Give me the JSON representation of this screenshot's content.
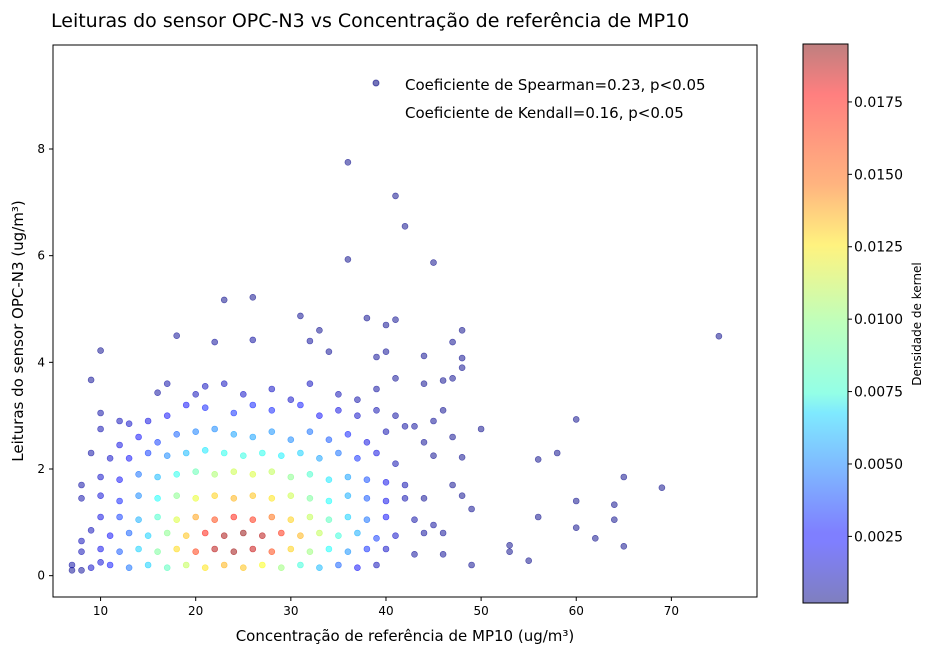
{
  "chart_data": {
    "type": "scatter",
    "title": "Leituras do sensor OPC-N3 vs Concentração de referência de MP10",
    "xlabel": "Concentração de referência de MP10 (ug/m³)",
    "ylabel": "Leituras do sensor OPC-N3 (ug/m³)",
    "xlim": [
      5,
      79
    ],
    "ylim": [
      -0.4,
      9.95
    ],
    "xticks": [
      10,
      20,
      30,
      40,
      50,
      60,
      70
    ],
    "yticks": [
      0,
      2,
      4,
      6,
      8
    ],
    "legend": {
      "placement": "top-right",
      "entries": [
        "Coeficiente de Spearman=0.23, p<0.05",
        "Coeficiente de Kendall=0.16, p<0.05"
      ]
    },
    "colorbar": {
      "label": "Densidade de kernel",
      "colormap": "jet",
      "range": [
        0.0002,
        0.0195
      ],
      "ticks": [
        0.0025,
        0.005,
        0.0075,
        0.01,
        0.0125,
        0.015,
        0.0175
      ],
      "tick_labels": [
        "0.0025",
        "0.0050",
        "0.0075",
        "0.0100",
        "0.0125",
        "0.0150",
        "0.0175"
      ]
    },
    "points": [
      [
        36,
        7.75,
        0.0003
      ],
      [
        41,
        7.12,
        0.0003
      ],
      [
        42,
        6.55,
        0.0003
      ],
      [
        36,
        5.93,
        0.0003
      ],
      [
        45,
        5.87,
        0.0003
      ],
      [
        23,
        5.17,
        0.0003
      ],
      [
        26,
        5.22,
        0.0003
      ],
      [
        31,
        4.87,
        0.0004
      ],
      [
        33,
        4.6,
        0.0004
      ],
      [
        38,
        4.83,
        0.0004
      ],
      [
        40,
        4.7,
        0.0004
      ],
      [
        41,
        4.8,
        0.0004
      ],
      [
        48,
        4.6,
        0.0003
      ],
      [
        75,
        4.49,
        0.0003
      ],
      [
        10,
        4.22,
        0.0004
      ],
      [
        18,
        4.5,
        0.0005
      ],
      [
        22,
        4.38,
        0.0006
      ],
      [
        26,
        4.42,
        0.0007
      ],
      [
        32,
        4.4,
        0.0006
      ],
      [
        34,
        4.2,
        0.0005
      ],
      [
        39,
        4.1,
        0.0005
      ],
      [
        40,
        4.2,
        0.0005
      ],
      [
        44,
        4.12,
        0.0004
      ],
      [
        48,
        4.08,
        0.0004
      ],
      [
        47,
        4.38,
        0.0004
      ],
      [
        9,
        3.67,
        0.0005
      ],
      [
        16,
        3.43,
        0.0007
      ],
      [
        17,
        3.6,
        0.0009
      ],
      [
        20,
        3.4,
        0.0012
      ],
      [
        21,
        3.55,
        0.0013
      ],
      [
        23,
        3.6,
        0.0013
      ],
      [
        25,
        3.4,
        0.0015
      ],
      [
        28,
        3.5,
        0.0014
      ],
      [
        30,
        3.3,
        0.0015
      ],
      [
        32,
        3.6,
        0.0013
      ],
      [
        35,
        3.4,
        0.0011
      ],
      [
        37,
        3.3,
        0.0009
      ],
      [
        39,
        3.5,
        0.0007
      ],
      [
        41,
        3.7,
        0.0005
      ],
      [
        44,
        3.6,
        0.0004
      ],
      [
        46,
        3.66,
        0.0004
      ],
      [
        47,
        3.7,
        0.0004
      ],
      [
        48,
        3.9,
        0.0004
      ],
      [
        10,
        3.05,
        0.0008
      ],
      [
        12,
        2.9,
        0.0012
      ],
      [
        13,
        2.85,
        0.0015
      ],
      [
        15,
        2.9,
        0.002
      ],
      [
        17,
        3.0,
        0.0025
      ],
      [
        19,
        3.2,
        0.0025
      ],
      [
        21,
        3.15,
        0.003
      ],
      [
        24,
        3.05,
        0.0032
      ],
      [
        26,
        3.2,
        0.003
      ],
      [
        28,
        3.1,
        0.003
      ],
      [
        31,
        3.2,
        0.0028
      ],
      [
        33,
        3.0,
        0.0025
      ],
      [
        35,
        3.1,
        0.002
      ],
      [
        37,
        3.0,
        0.0015
      ],
      [
        39,
        3.1,
        0.001
      ],
      [
        41,
        3.0,
        0.0007
      ],
      [
        43,
        2.8,
        0.0006
      ],
      [
        45,
        2.9,
        0.0005
      ],
      [
        46,
        3.1,
        0.0004
      ],
      [
        10,
        2.75,
        0.001
      ],
      [
        12,
        2.45,
        0.002
      ],
      [
        14,
        2.6,
        0.0025
      ],
      [
        16,
        2.5,
        0.0035
      ],
      [
        18,
        2.65,
        0.0042
      ],
      [
        20,
        2.7,
        0.0048
      ],
      [
        22,
        2.75,
        0.005
      ],
      [
        24,
        2.65,
        0.0055
      ],
      [
        26,
        2.6,
        0.0055
      ],
      [
        28,
        2.7,
        0.0052
      ],
      [
        30,
        2.55,
        0.005
      ],
      [
        32,
        2.7,
        0.0045
      ],
      [
        34,
        2.55,
        0.004
      ],
      [
        36,
        2.65,
        0.003
      ],
      [
        38,
        2.5,
        0.002
      ],
      [
        40,
        2.7,
        0.001
      ],
      [
        42,
        2.8,
        0.0007
      ],
      [
        44,
        2.5,
        0.0005
      ],
      [
        47,
        2.6,
        0.0004
      ],
      [
        50,
        2.75,
        0.0003
      ],
      [
        56,
        2.18,
        0.0003
      ],
      [
        58,
        2.3,
        0.0003
      ],
      [
        60,
        2.93,
        0.0003
      ],
      [
        9,
        2.3,
        0.0008
      ],
      [
        11,
        2.2,
        0.0015
      ],
      [
        13,
        2.2,
        0.0025
      ],
      [
        15,
        2.3,
        0.0035
      ],
      [
        17,
        2.25,
        0.005
      ],
      [
        19,
        2.3,
        0.006
      ],
      [
        21,
        2.35,
        0.007
      ],
      [
        23,
        2.3,
        0.0078
      ],
      [
        25,
        2.25,
        0.008
      ],
      [
        27,
        2.3,
        0.0078
      ],
      [
        29,
        2.25,
        0.0072
      ],
      [
        31,
        2.3,
        0.0065
      ],
      [
        33,
        2.2,
        0.0055
      ],
      [
        35,
        2.3,
        0.0045
      ],
      [
        37,
        2.2,
        0.0032
      ],
      [
        39,
        2.3,
        0.002
      ],
      [
        41,
        2.1,
        0.001
      ],
      [
        45,
        2.25,
        0.0004
      ],
      [
        48,
        2.22,
        0.0004
      ],
      [
        8,
        1.7,
        0.0008
      ],
      [
        10,
        1.85,
        0.0015
      ],
      [
        12,
        1.8,
        0.0025
      ],
      [
        14,
        1.9,
        0.0045
      ],
      [
        16,
        1.85,
        0.006
      ],
      [
        18,
        1.9,
        0.0078
      ],
      [
        20,
        1.95,
        0.009
      ],
      [
        22,
        1.9,
        0.0105
      ],
      [
        24,
        1.95,
        0.0112
      ],
      [
        26,
        1.9,
        0.0115
      ],
      [
        28,
        1.95,
        0.011
      ],
      [
        30,
        1.85,
        0.0098
      ],
      [
        32,
        1.9,
        0.0085
      ],
      [
        34,
        1.8,
        0.007
      ],
      [
        36,
        1.85,
        0.0055
      ],
      [
        38,
        1.8,
        0.0038
      ],
      [
        40,
        1.75,
        0.0022
      ],
      [
        42,
        1.7,
        0.001
      ],
      [
        47,
        1.7,
        0.0004
      ],
      [
        48,
        1.5,
        0.0004
      ],
      [
        65,
        1.85,
        0.0003
      ],
      [
        69,
        1.65,
        0.0003
      ],
      [
        8,
        1.45,
        0.0009
      ],
      [
        10,
        1.5,
        0.0018
      ],
      [
        12,
        1.4,
        0.003
      ],
      [
        14,
        1.5,
        0.005
      ],
      [
        16,
        1.45,
        0.0075
      ],
      [
        18,
        1.5,
        0.0098
      ],
      [
        20,
        1.45,
        0.0118
      ],
      [
        22,
        1.5,
        0.0132
      ],
      [
        24,
        1.45,
        0.0138
      ],
      [
        26,
        1.5,
        0.0135
      ],
      [
        28,
        1.45,
        0.0128
      ],
      [
        30,
        1.5,
        0.0112
      ],
      [
        32,
        1.45,
        0.0095
      ],
      [
        34,
        1.4,
        0.0075
      ],
      [
        36,
        1.5,
        0.0058
      ],
      [
        38,
        1.45,
        0.004
      ],
      [
        40,
        1.4,
        0.0022
      ],
      [
        42,
        1.45,
        0.001
      ],
      [
        44,
        1.45,
        0.0005
      ],
      [
        49,
        1.25,
        0.0004
      ],
      [
        60,
        1.4,
        0.0003
      ],
      [
        64,
        1.33,
        0.0003
      ],
      [
        10,
        1.1,
        0.002
      ],
      [
        12,
        1.1,
        0.0035
      ],
      [
        14,
        1.05,
        0.0058
      ],
      [
        16,
        1.1,
        0.0085
      ],
      [
        18,
        1.05,
        0.0115
      ],
      [
        20,
        1.1,
        0.0142
      ],
      [
        22,
        1.05,
        0.016
      ],
      [
        24,
        1.1,
        0.0168
      ],
      [
        26,
        1.05,
        0.0165
      ],
      [
        28,
        1.1,
        0.0152
      ],
      [
        30,
        1.05,
        0.0132
      ],
      [
        32,
        1.1,
        0.011
      ],
      [
        34,
        1.05,
        0.0088
      ],
      [
        36,
        1.1,
        0.0065
      ],
      [
        38,
        1.05,
        0.0045
      ],
      [
        40,
        1.1,
        0.0025
      ],
      [
        43,
        1.05,
        0.0008
      ],
      [
        45,
        0.95,
        0.0006
      ],
      [
        56,
        1.1,
        0.0003
      ],
      [
        64,
        1.05,
        0.0003
      ],
      [
        9,
        0.85,
        0.0012
      ],
      [
        11,
        0.75,
        0.0025
      ],
      [
        13,
        0.8,
        0.0042
      ],
      [
        15,
        0.75,
        0.0065
      ],
      [
        17,
        0.8,
        0.0098
      ],
      [
        19,
        0.75,
        0.0135
      ],
      [
        21,
        0.8,
        0.0168
      ],
      [
        23,
        0.75,
        0.0188
      ],
      [
        25,
        0.8,
        0.0192
      ],
      [
        27,
        0.75,
        0.0185
      ],
      [
        29,
        0.8,
        0.0165
      ],
      [
        31,
        0.75,
        0.0138
      ],
      [
        33,
        0.8,
        0.011
      ],
      [
        35,
        0.75,
        0.0082
      ],
      [
        37,
        0.8,
        0.0058
      ],
      [
        39,
        0.7,
        0.0035
      ],
      [
        41,
        0.75,
        0.0015
      ],
      [
        44,
        0.8,
        0.0006
      ],
      [
        46,
        0.8,
        0.0005
      ],
      [
        60,
        0.9,
        0.0003
      ],
      [
        8,
        0.45,
        0.0011
      ],
      [
        10,
        0.5,
        0.0022
      ],
      [
        12,
        0.45,
        0.004
      ],
      [
        14,
        0.5,
        0.0065
      ],
      [
        16,
        0.45,
        0.0095
      ],
      [
        18,
        0.5,
        0.013
      ],
      [
        20,
        0.45,
        0.0162
      ],
      [
        22,
        0.5,
        0.0185
      ],
      [
        24,
        0.45,
        0.019
      ],
      [
        26,
        0.5,
        0.0182
      ],
      [
        28,
        0.45,
        0.016
      ],
      [
        30,
        0.5,
        0.0132
      ],
      [
        32,
        0.45,
        0.0102
      ],
      [
        34,
        0.5,
        0.0075
      ],
      [
        36,
        0.45,
        0.0052
      ],
      [
        38,
        0.5,
        0.0032
      ],
      [
        40,
        0.5,
        0.0015
      ],
      [
        43,
        0.4,
        0.0006
      ],
      [
        46,
        0.4,
        0.0005
      ],
      [
        53,
        0.45,
        0.0003
      ],
      [
        53,
        0.57,
        0.0003
      ],
      [
        55,
        0.28,
        0.0003
      ],
      [
        62,
        0.7,
        0.0003
      ],
      [
        65,
        0.55,
        0.0003
      ],
      [
        7,
        0.2,
        0.0008
      ],
      [
        9,
        0.15,
        0.0015
      ],
      [
        11,
        0.2,
        0.0028
      ],
      [
        13,
        0.15,
        0.0045
      ],
      [
        15,
        0.2,
        0.0065
      ],
      [
        17,
        0.15,
        0.0088
      ],
      [
        19,
        0.2,
        0.011
      ],
      [
        21,
        0.15,
        0.0128
      ],
      [
        23,
        0.2,
        0.0138
      ],
      [
        25,
        0.15,
        0.0135
      ],
      [
        27,
        0.2,
        0.0122
      ],
      [
        29,
        0.15,
        0.0102
      ],
      [
        31,
        0.2,
        0.0082
      ],
      [
        33,
        0.15,
        0.006
      ],
      [
        35,
        0.2,
        0.0042
      ],
      [
        37,
        0.15,
        0.0025
      ],
      [
        39,
        0.2,
        0.0012
      ],
      [
        49,
        0.2,
        0.0004
      ],
      [
        7,
        0.1,
        0.0005
      ],
      [
        8,
        0.1,
        0.0006
      ],
      [
        10,
        0.25,
        0.0018
      ],
      [
        8,
        0.65,
        0.0012
      ]
    ]
  }
}
